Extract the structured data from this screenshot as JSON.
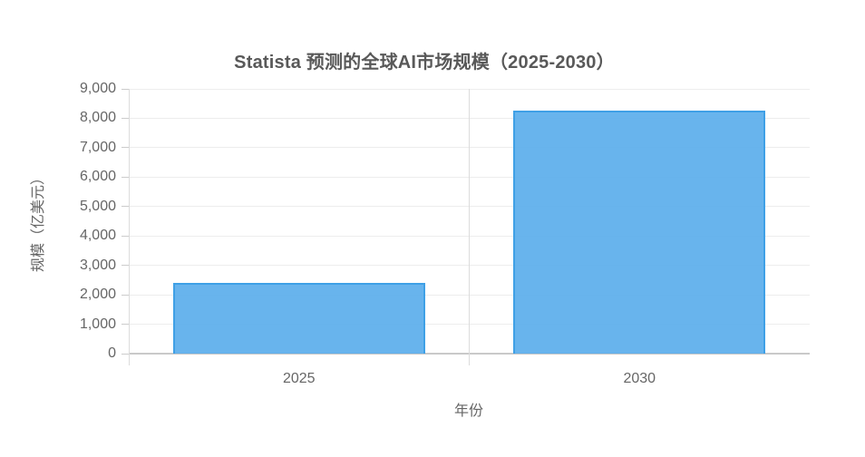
{
  "chart_data": {
    "type": "bar",
    "title": "Statista 预测的全球AI市场规模（2025-2030）",
    "categories": [
      "2025",
      "2030"
    ],
    "values": [
      2400,
      8250
    ],
    "xlabel": "年份",
    "ylabel": "规模（亿美元）",
    "ylim": [
      0,
      9000
    ],
    "y_tick_step": 1000,
    "y_tick_labels": [
      "0",
      "1,000",
      "2,000",
      "3,000",
      "4,000",
      "5,000",
      "6,000",
      "7,000",
      "8,000",
      "9,000"
    ],
    "grid": true,
    "legend_position": "none",
    "bar_color": "#5caeec",
    "bar_border_color": "#3fa0e6",
    "title_color": "#595959",
    "axis_text_color": "#666666"
  }
}
